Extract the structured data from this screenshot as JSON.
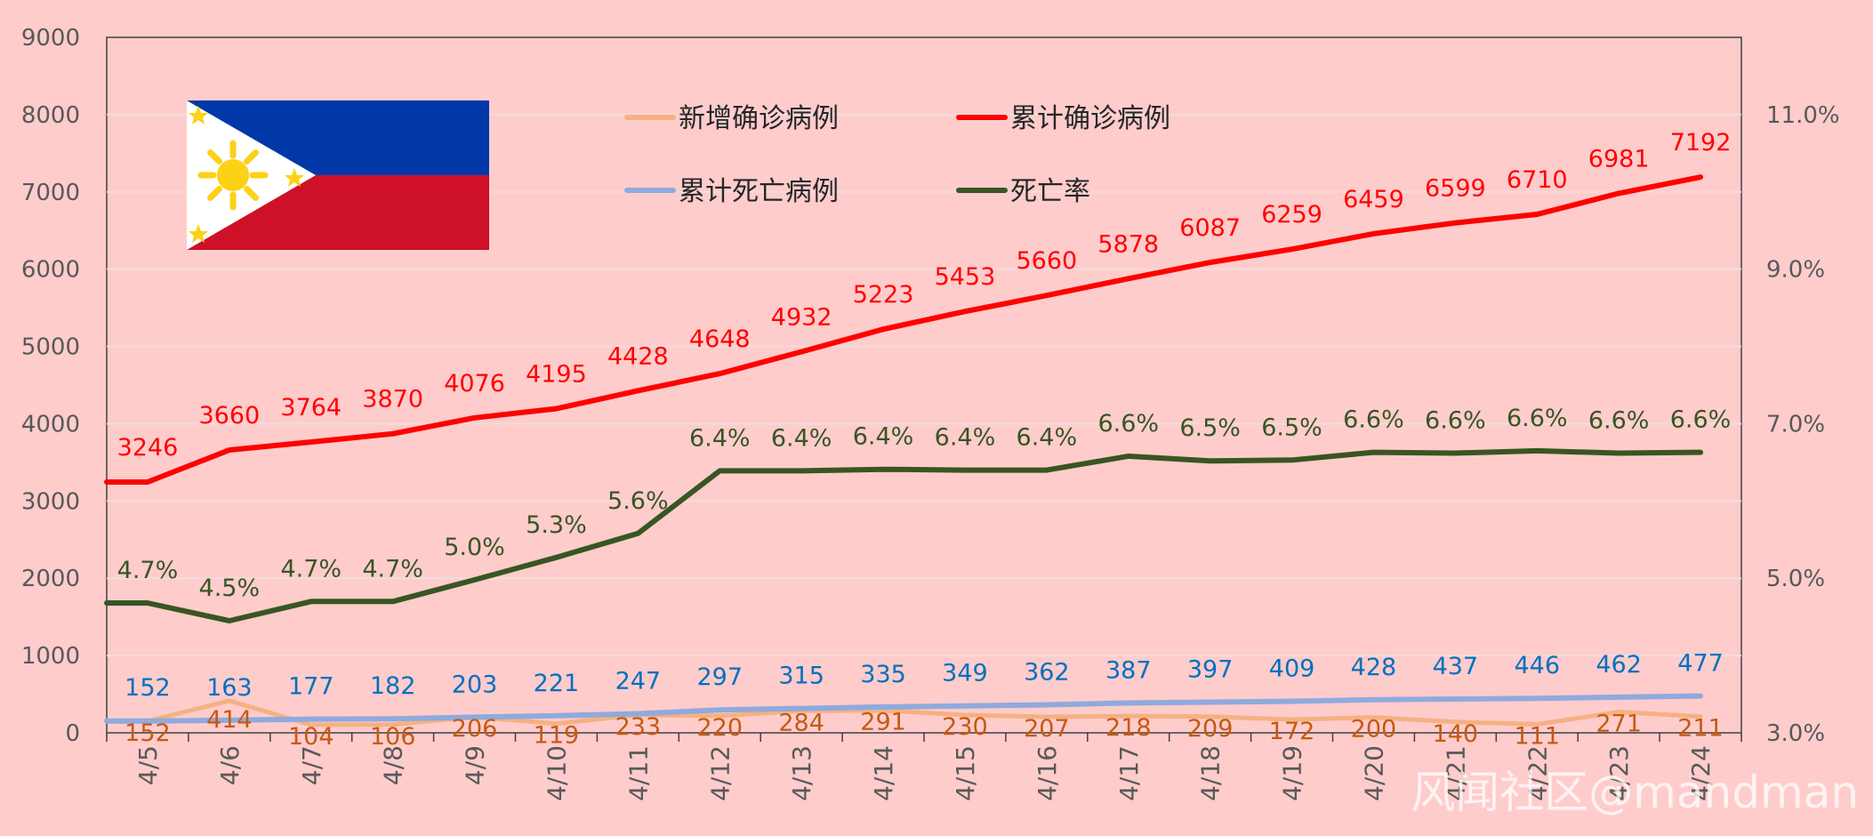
{
  "chart_data": {
    "type": "line",
    "categories": [
      "4/5",
      "4/6",
      "4/7",
      "4/8",
      "4/9",
      "4/10",
      "4/11",
      "4/12",
      "4/13",
      "4/14",
      "4/15",
      "4/16",
      "4/17",
      "4/18",
      "4/19",
      "4/20",
      "4/21",
      "4/22",
      "4/23",
      "4/24"
    ],
    "y_left": {
      "min": 0,
      "max": 9000,
      "ticks": [
        "0",
        "1000",
        "2000",
        "3000",
        "4000",
        "5000",
        "6000",
        "7000",
        "8000",
        "9000"
      ]
    },
    "y_right": {
      "min": 3.0,
      "max": 12.0,
      "ticks": [
        "3.0%",
        "5.0%",
        "7.0%",
        "9.0%",
        "11.0%"
      ]
    },
    "grid": true,
    "legend_position": "top",
    "series": [
      {
        "name": "新增确诊病例",
        "color": "#F4B183",
        "label_color": "#C55A11",
        "axis": "left",
        "values": [
          152,
          414,
          104,
          106,
          206,
          119,
          233,
          220,
          284,
          291,
          230,
          207,
          218,
          209,
          172,
          200,
          140,
          111,
          271,
          211
        ],
        "labels": [
          "152",
          "414",
          "104",
          "106",
          "206",
          "119",
          "233",
          "220",
          "284",
          "291",
          "230",
          "207",
          "218",
          "209",
          "172",
          "200",
          "140",
          "111",
          "271",
          "211"
        ]
      },
      {
        "name": "累计确诊病例",
        "color": "#FF0000",
        "label_color": "#FF0000",
        "axis": "left",
        "values": [
          3246,
          3660,
          3764,
          3870,
          4076,
          4195,
          4428,
          4648,
          4932,
          5223,
          5453,
          5660,
          5878,
          6087,
          6259,
          6459,
          6599,
          6710,
          6981,
          7192
        ],
        "labels": [
          "3246",
          "3660",
          "3764",
          "3870",
          "4076",
          "4195",
          "4428",
          "4648",
          "4932",
          "5223",
          "5453",
          "5660",
          "5878",
          "6087",
          "6259",
          "6459",
          "6599",
          "6710",
          "6981",
          "7192"
        ]
      },
      {
        "name": "累计死亡病例",
        "color": "#8FAADC",
        "label_color": "#0070C0",
        "axis": "left",
        "values": [
          152,
          163,
          177,
          182,
          203,
          221,
          247,
          297,
          315,
          335,
          349,
          362,
          387,
          397,
          409,
          428,
          437,
          446,
          462,
          477
        ],
        "labels": [
          "152",
          "163",
          "177",
          "182",
          "203",
          "221",
          "247",
          "297",
          "315",
          "335",
          "349",
          "362",
          "387",
          "397",
          "409",
          "428",
          "437",
          "446",
          "462",
          "477"
        ]
      },
      {
        "name": "死亡率",
        "color": "#375623",
        "label_color": "#375623",
        "axis": "right",
        "values": [
          4.68,
          4.45,
          4.7,
          4.7,
          4.98,
          5.27,
          5.58,
          6.39,
          6.39,
          6.41,
          6.4,
          6.4,
          6.58,
          6.52,
          6.53,
          6.63,
          6.62,
          6.65,
          6.62,
          6.63
        ],
        "labels": [
          "4.7%",
          "4.5%",
          "4.7%",
          "4.7%",
          "5.0%",
          "5.3%",
          "5.6%",
          "6.4%",
          "6.4%",
          "6.4%",
          "6.4%",
          "6.4%",
          "6.6%",
          "6.5%",
          "6.5%",
          "6.6%",
          "6.6%",
          "6.6%",
          "6.6%",
          "6.6%"
        ]
      }
    ]
  },
  "flag": {
    "name": "philippines-flag",
    "blue": "#0038A8",
    "red": "#CE1126",
    "white": "#FFFFFF",
    "yellow": "#FCD116"
  },
  "watermark": "风闻社区@mandman"
}
